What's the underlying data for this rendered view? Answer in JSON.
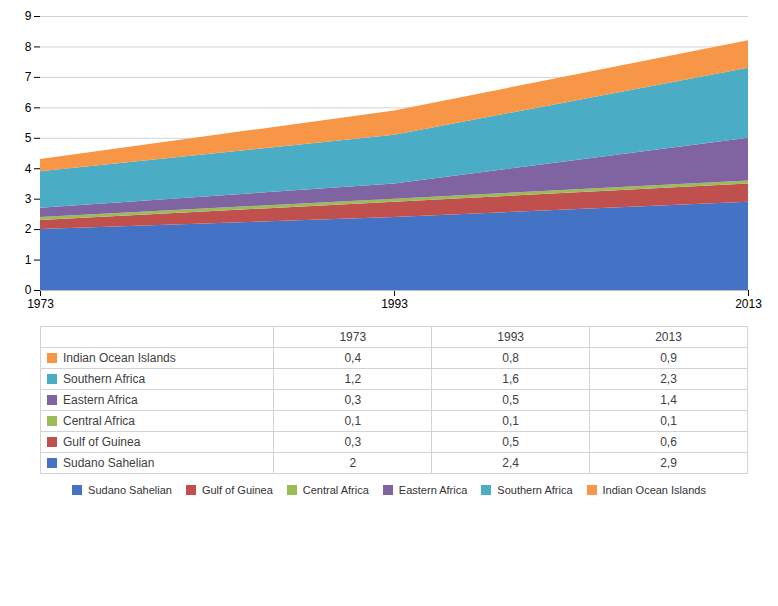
{
  "chart_data": {
    "type": "area",
    "stacked": true,
    "x": [
      1973,
      1993,
      2013
    ],
    "series": [
      {
        "name": "Sudano Sahelian",
        "color": "#4472C4",
        "values": [
          2.0,
          2.4,
          2.9
        ],
        "value_labels": [
          "2",
          "2,4",
          "2,9"
        ]
      },
      {
        "name": "Gulf of Guinea",
        "color": "#C0504D",
        "values": [
          0.3,
          0.5,
          0.6
        ],
        "value_labels": [
          "0,3",
          "0,5",
          "0,6"
        ]
      },
      {
        "name": "Central Africa",
        "color": "#9BBB59",
        "values": [
          0.1,
          0.1,
          0.1
        ],
        "value_labels": [
          "0,1",
          "0,1",
          "0,1"
        ]
      },
      {
        "name": "Eastern Africa",
        "color": "#8064A2",
        "values": [
          0.3,
          0.5,
          1.4
        ],
        "value_labels": [
          "0,3",
          "0,5",
          "1,4"
        ]
      },
      {
        "name": "Southern Africa",
        "color": "#4BACC6",
        "values": [
          1.2,
          1.6,
          2.3
        ],
        "value_labels": [
          "1,2",
          "1,6",
          "2,3"
        ]
      },
      {
        "name": "Indian Ocean Islands",
        "color": "#F79646",
        "values": [
          0.4,
          0.8,
          0.9
        ],
        "value_labels": [
          "0,4",
          "0,8",
          "0,9"
        ]
      }
    ],
    "xlim": [
      1973,
      2013
    ],
    "xticks": [
      1973,
      1993,
      2013
    ],
    "ylim": [
      0,
      9
    ],
    "yticks": [
      0,
      1,
      2,
      3,
      4,
      5,
      6,
      7,
      8,
      9
    ],
    "grid": true,
    "legend": "bottom"
  }
}
